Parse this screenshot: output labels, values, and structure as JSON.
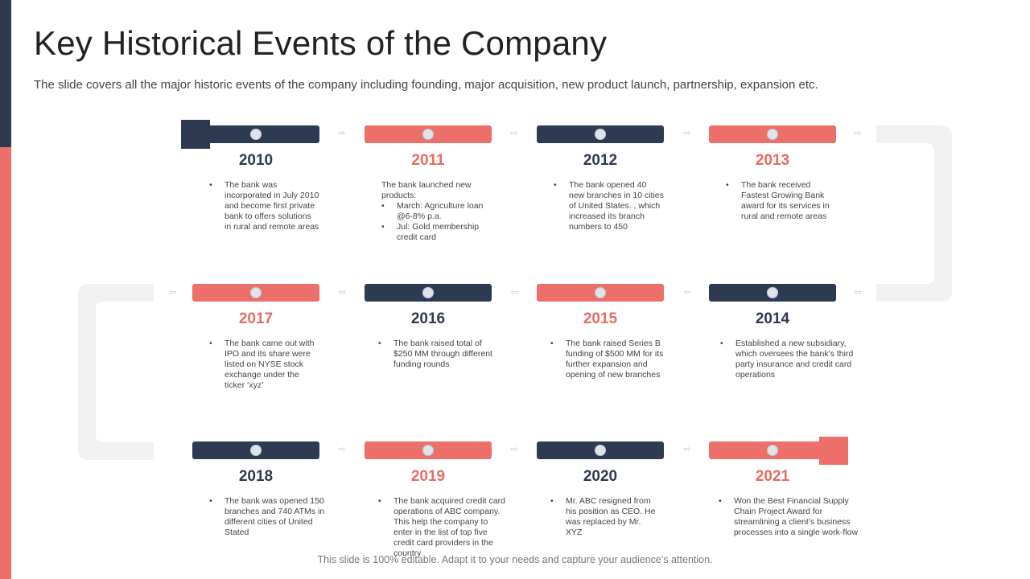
{
  "slide": {
    "title": "Key Historical Events of the Company",
    "subtitle": "The slide covers all the major historic events of the company including founding, major acquisition, new product launch, partnership, expansion etc.",
    "footer": "This slide is 100% editable. Adapt it to your needs and capture your audience’s attention."
  },
  "colors": {
    "dark": "#2e3a52",
    "red": "#ec6f69",
    "connector": "#f1f1f1"
  },
  "arrow_icon": "chevron-arrow-icon",
  "events": [
    {
      "year": "2010",
      "bullets": [
        "The bank was incorporated in July 2010 and become first private bank to offers solutions in rural and remote areas"
      ]
    },
    {
      "year": "2011",
      "intro": "The bank launched new products:",
      "bullets": [
        "March: Agriculture loan @6-8% p.a.",
        "Jul: Gold membership credit card"
      ]
    },
    {
      "year": "2012",
      "bullets": [
        "The bank opened 40 new branches in 10 cities of United States. , which increased its branch numbers to 450"
      ]
    },
    {
      "year": "2013",
      "bullets": [
        "The bank received Fastest Growing Bank award for its services in rural and remote areas"
      ]
    },
    {
      "year": "2014",
      "bullets": [
        "Established a new subsidiary, which oversees the bank’s third party insurance and credit card operations"
      ]
    },
    {
      "year": "2015",
      "bullets": [
        "The bank raised Series B funding of $500 MM for its further expansion and opening of new branches"
      ]
    },
    {
      "year": "2016",
      "bullets": [
        "The bank raised total of $250 MM through different funding rounds"
      ]
    },
    {
      "year": "2017",
      "bullets": [
        "The bank came out with IPO and its share were listed on NYSE stock exchange under the ticker ‘xyz’"
      ]
    },
    {
      "year": "2018",
      "bullets": [
        "The bank was opened 150 branches and 740 ATMs in different cities of United Stated"
      ]
    },
    {
      "year": "2019",
      "bullets": [
        "The bank acquired credit card operations of ABC company. This help the company to enter in the list of top five credit card providers in the country"
      ]
    },
    {
      "year": "2020",
      "bullets": [
        "Mr. ABC resigned from his position as CEO. He was replaced by Mr. XYZ"
      ]
    },
    {
      "year": "2021",
      "bullets": [
        "Won the Best Financial Supply Chain Project Award for streamlining a client’s business processes into a single work-flow"
      ]
    }
  ]
}
